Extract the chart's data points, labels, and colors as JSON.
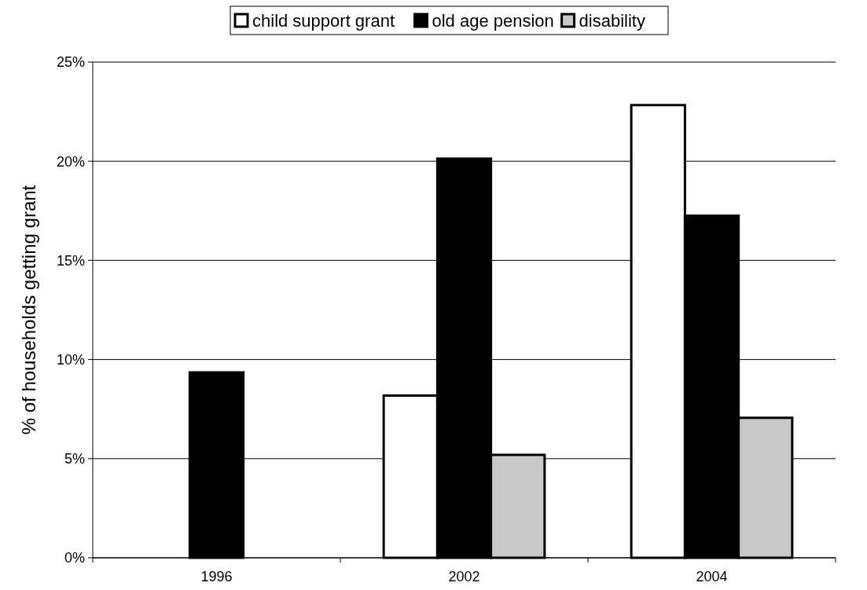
{
  "chart_data": {
    "type": "bar",
    "ylabel": "% of households getting grant",
    "categories": [
      "1996",
      "2002",
      "2004"
    ],
    "series": [
      {
        "name": "child support grant",
        "color": "#ffffff",
        "values": [
          null,
          8.18,
          22.83
        ]
      },
      {
        "name": "old age pension",
        "color": "#000000",
        "values": [
          9.35,
          20.13,
          17.25
        ]
      },
      {
        "name": "disability",
        "color": "#c8c8c8",
        "values": [
          null,
          5.19,
          7.06
        ]
      }
    ],
    "ylim": [
      0,
      25
    ],
    "yticks": [
      {
        "value": 0,
        "label": "0%"
      },
      {
        "value": 5,
        "label": "5%"
      },
      {
        "value": 10,
        "label": "10%"
      },
      {
        "value": 15,
        "label": "15%"
      },
      {
        "value": 20,
        "label": "20%"
      },
      {
        "value": 25,
        "label": "25%"
      }
    ],
    "grid": "y",
    "legend": "top"
  }
}
